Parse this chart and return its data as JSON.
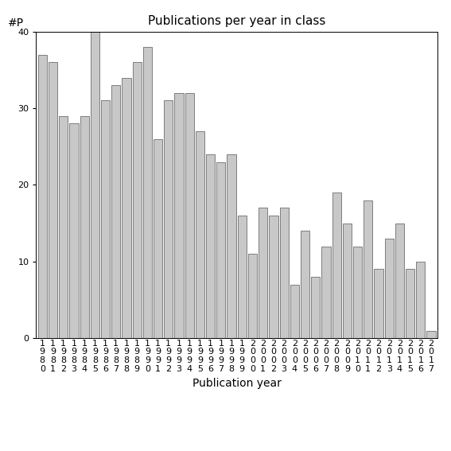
{
  "title": "Publications per year in class",
  "xlabel": "Publication year",
  "ylabel": "#P",
  "years": [
    "1980",
    "1981",
    "1982",
    "1983",
    "1984",
    "1985",
    "1986",
    "1987",
    "1988",
    "1989",
    "1990",
    "1991",
    "1992",
    "1993",
    "1994",
    "1995",
    "1996",
    "1997",
    "1998",
    "1999",
    "2000",
    "2001",
    "2002",
    "2003",
    "2004",
    "2005",
    "2006",
    "2007",
    "2008",
    "2009",
    "2010",
    "2011",
    "2012",
    "2013",
    "2014",
    "2015",
    "2016",
    "2017"
  ],
  "values": [
    37,
    36,
    29,
    28,
    29,
    40,
    31,
    33,
    34,
    36,
    38,
    26,
    31,
    32,
    32,
    27,
    24,
    23,
    24,
    16,
    11,
    17,
    16,
    17,
    7,
    14,
    8,
    12,
    19,
    15,
    12,
    18,
    9,
    13,
    15,
    9,
    10,
    1
  ],
  "bar_color": "#c8c8c8",
  "bar_edgecolor": "#555555",
  "ylim": [
    0,
    40
  ],
  "yticks": [
    0,
    10,
    20,
    30,
    40
  ],
  "bg_color": "#ffffff",
  "title_fontsize": 11,
  "axis_label_fontsize": 10,
  "tick_fontsize": 8
}
